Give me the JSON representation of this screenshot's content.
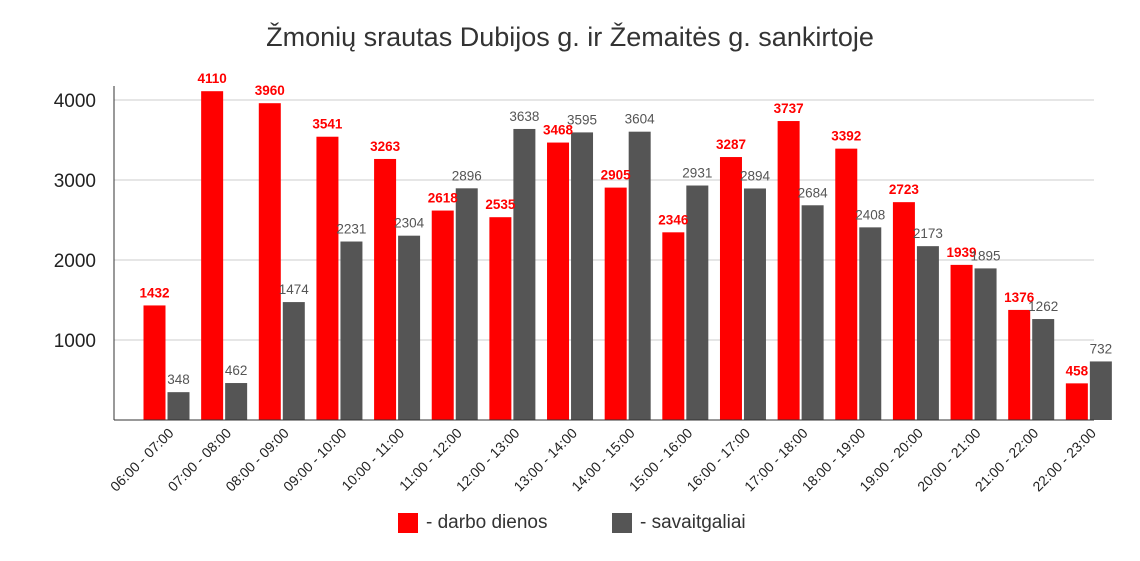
{
  "chart_data": {
    "type": "bar",
    "title": "Žmonių srautas Dubijos g. ir Žemaitės g. sankirtoje",
    "categories": [
      "06:00 - 07:00",
      "07:00 - 08:00",
      "08:00 - 09:00",
      "09:00 - 10:00",
      "10:00 - 11:00",
      "11:00 - 12:00",
      "12:00 - 13:00",
      "13:00 - 14:00",
      "14:00 - 15:00",
      "15:00 - 16:00",
      "16:00 - 17:00",
      "17:00 - 18:00",
      "18:00 - 19:00",
      "19:00 - 20:00",
      "20:00 - 21:00",
      "21:00 - 22:00",
      "22:00 - 23:00"
    ],
    "series": [
      {
        "name": "- darbo dienos",
        "color": "#ff0000",
        "label_color": "#ff0000",
        "values": [
          1432,
          4110,
          3960,
          3541,
          3263,
          2618,
          2535,
          3468,
          2905,
          2346,
          3287,
          3737,
          3392,
          2723,
          1939,
          1376,
          458
        ]
      },
      {
        "name": "- savaitgaliai",
        "color": "#555555",
        "label_color": "#555555",
        "values": [
          348,
          462,
          1474,
          2231,
          2304,
          2896,
          3638,
          3595,
          3604,
          2931,
          2894,
          2684,
          2408,
          2173,
          1895,
          1262,
          732
        ]
      }
    ],
    "ylim": [
      0,
      4000
    ],
    "yticks": [
      1000,
      2000,
      3000,
      4000
    ],
    "grid": true,
    "legend_position": "bottom-center",
    "xlabel": "",
    "ylabel": ""
  }
}
